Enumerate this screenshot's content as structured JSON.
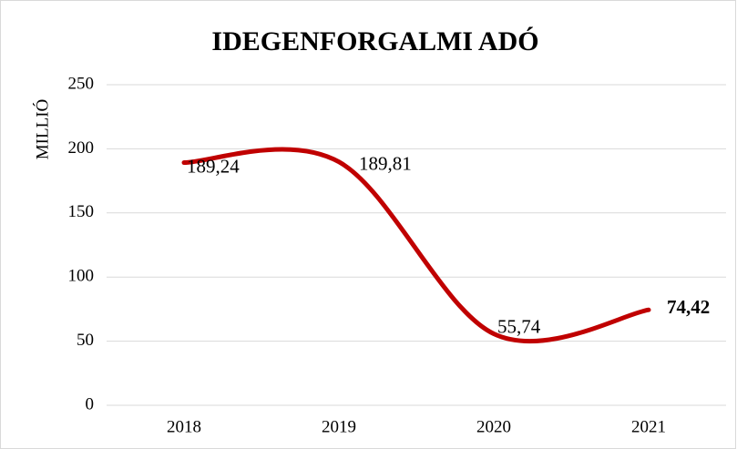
{
  "chart_data": {
    "type": "line",
    "title": "IDEGENFORGALMI ADÓ",
    "y_label": "MILLIÓ",
    "categories": [
      "2018",
      "2019",
      "2020",
      "2021"
    ],
    "values": [
      189.24,
      189.81,
      55.74,
      74.42
    ],
    "value_labels": [
      "189,24",
      "189,81",
      "55,74",
      "74,42"
    ],
    "color": "#c00000",
    "smooth": true,
    "ylim": [
      0,
      250
    ],
    "yticks": [
      0,
      50,
      100,
      150,
      200,
      250
    ],
    "grid": true
  }
}
